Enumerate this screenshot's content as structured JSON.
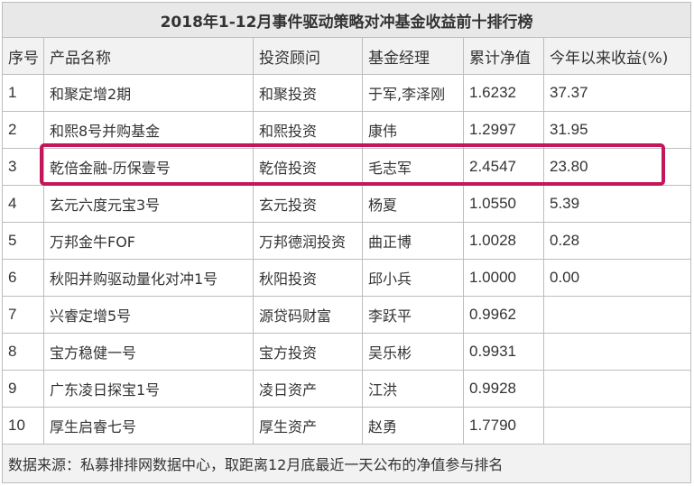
{
  "title": "2018年1-12月事件驱动策略对冲基金收益前十排行榜",
  "columns": [
    "序号",
    "产品名称",
    "投资顾问",
    "基金经理",
    "累计净值",
    "今年以来收益(%)"
  ],
  "rows": [
    [
      "1",
      "和聚定增2期",
      "和聚投资",
      "于军,李泽刚",
      "1.6232",
      "37.37"
    ],
    [
      "2",
      "和熙8号并购基金",
      "和熙投资",
      "康伟",
      "1.2997",
      "31.95"
    ],
    [
      "3",
      "乾倍金融-历保壹号",
      "乾倍投资",
      "毛志军",
      "2.4547",
      "23.80"
    ],
    [
      "4",
      "玄元六度元宝3号",
      "玄元投资",
      "杨夏",
      "1.0550",
      "5.39"
    ],
    [
      "5",
      "万邦金牛FOF",
      "万邦德润投资",
      "曲正博",
      "1.0028",
      "0.28"
    ],
    [
      "6",
      "秋阳并购驱动量化对冲1号",
      "秋阳投资",
      "邱小兵",
      "1.0000",
      "0.00"
    ],
    [
      "7",
      "兴睿定增5号",
      "源贷码财富",
      "李跃平",
      "0.9962",
      ""
    ],
    [
      "8",
      "宝方稳健一号",
      "宝方投资",
      "吴乐彬",
      "0.9931",
      ""
    ],
    [
      "9",
      "广东凌日探宝1号",
      "凌日资产",
      "江洪",
      "0.9928",
      ""
    ],
    [
      "10",
      "厚生启睿七号",
      "厚生资产",
      "赵勇",
      "1.7790",
      ""
    ]
  ],
  "source": "数据来源：私募排排网数据中心，取距离12月底最近一天公布的净值参与排名",
  "colors": {
    "highlight": "#c2185b",
    "header_bg": "#f2f2f2",
    "title_bg": "#e8e8e8",
    "border": "#bdbdbd"
  }
}
